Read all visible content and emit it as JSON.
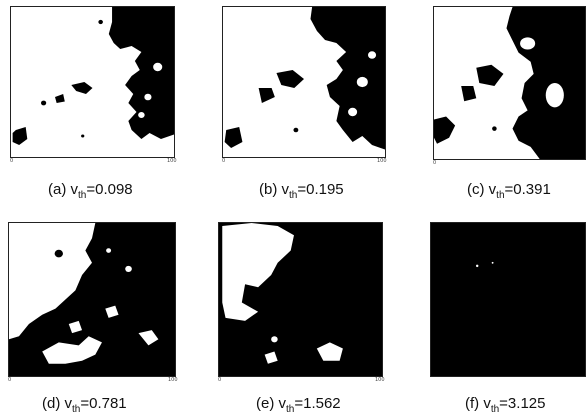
{
  "panels": [
    {
      "id": "a",
      "prefix": "(a) v",
      "sub": "th",
      "value": "=0.098"
    },
    {
      "id": "b",
      "prefix": "(b) v",
      "sub": "th",
      "value": "=0.195"
    },
    {
      "id": "c",
      "prefix": "(c) v",
      "sub": "th",
      "value": "=0.391"
    },
    {
      "id": "d",
      "prefix": "(d) v",
      "sub": "th",
      "value": "=0.781"
    },
    {
      "id": "e",
      "prefix": "(e) v",
      "sub": "th",
      "value": "=1.562"
    },
    {
      "id": "f",
      "prefix": "(f) v",
      "sub": "th",
      "value": "=3.125"
    }
  ],
  "colors": {
    "ink": "#000000",
    "paper": "#ffffff"
  }
}
